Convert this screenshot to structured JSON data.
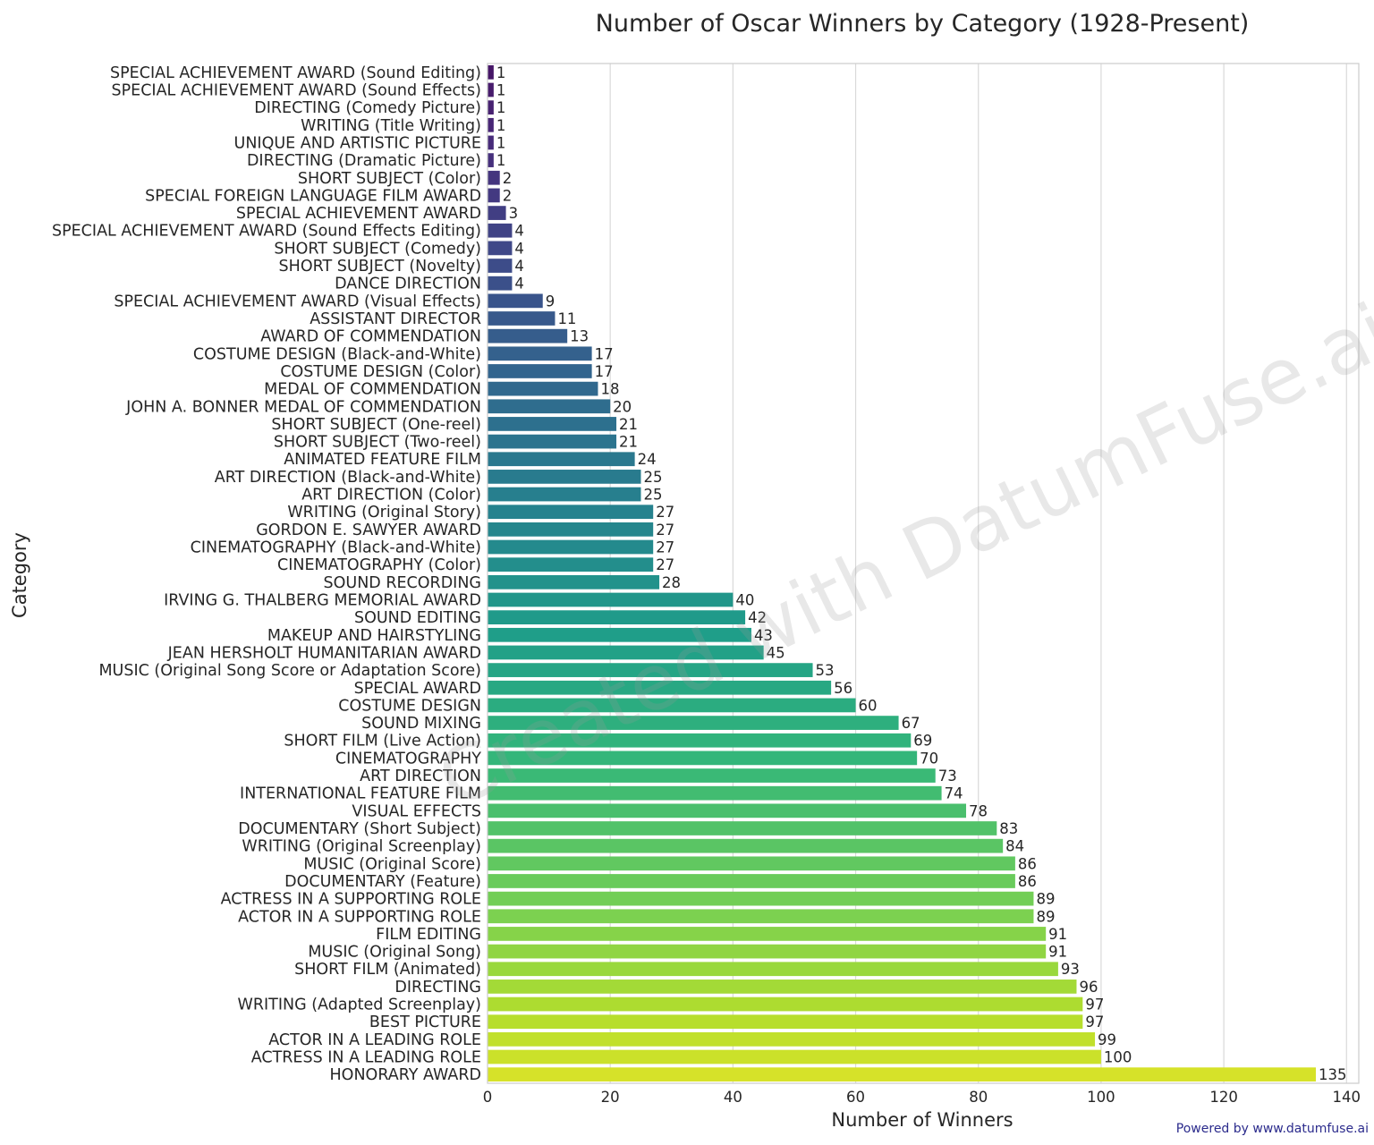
{
  "chart_data": {
    "type": "bar",
    "orientation": "horizontal",
    "title": "Number of Oscar Winners by Category (1928-Present)",
    "xlabel": "Number of Winners",
    "ylabel": "Category",
    "xlim": [
      0,
      142
    ],
    "xticks": [
      0,
      20,
      40,
      60,
      80,
      100,
      120,
      140
    ],
    "grid": true,
    "colormap": "viridis",
    "categories": [
      "SPECIAL ACHIEVEMENT AWARD (Sound Editing)",
      "SPECIAL ACHIEVEMENT AWARD (Sound Effects)",
      "DIRECTING (Comedy Picture)",
      "WRITING (Title Writing)",
      "UNIQUE AND ARTISTIC PICTURE",
      "DIRECTING (Dramatic Picture)",
      "SHORT SUBJECT (Color)",
      "SPECIAL FOREIGN LANGUAGE FILM AWARD",
      "SPECIAL ACHIEVEMENT AWARD",
      "SPECIAL ACHIEVEMENT AWARD (Sound Effects Editing)",
      "SHORT SUBJECT (Comedy)",
      "SHORT SUBJECT (Novelty)",
      "DANCE DIRECTION",
      "SPECIAL ACHIEVEMENT AWARD (Visual Effects)",
      "ASSISTANT DIRECTOR",
      "AWARD OF COMMENDATION",
      "COSTUME DESIGN (Black-and-White)",
      "COSTUME DESIGN (Color)",
      "MEDAL OF COMMENDATION",
      "JOHN A. BONNER MEDAL OF COMMENDATION",
      "SHORT SUBJECT (One-reel)",
      "SHORT SUBJECT (Two-reel)",
      "ANIMATED FEATURE FILM",
      "ART DIRECTION (Black-and-White)",
      "ART DIRECTION (Color)",
      "WRITING (Original Story)",
      "GORDON E. SAWYER AWARD",
      "CINEMATOGRAPHY (Black-and-White)",
      "CINEMATOGRAPHY (Color)",
      "SOUND RECORDING",
      "IRVING G. THALBERG MEMORIAL AWARD",
      "SOUND EDITING",
      "MAKEUP AND HAIRSTYLING",
      "JEAN HERSHOLT HUMANITARIAN AWARD",
      "MUSIC (Original Song Score or Adaptation Score)",
      "SPECIAL AWARD",
      "COSTUME DESIGN",
      "SOUND MIXING",
      "SHORT FILM (Live Action)",
      "CINEMATOGRAPHY",
      "ART DIRECTION",
      "INTERNATIONAL FEATURE FILM",
      "VISUAL EFFECTS",
      "DOCUMENTARY (Short Subject)",
      "WRITING (Original Screenplay)",
      "MUSIC (Original Score)",
      "DOCUMENTARY (Feature)",
      "ACTRESS IN A SUPPORTING ROLE",
      "ACTOR IN A SUPPORTING ROLE",
      "FILM EDITING",
      "MUSIC (Original Song)",
      "SHORT FILM (Animated)",
      "DIRECTING",
      "WRITING (Adapted Screenplay)",
      "BEST PICTURE",
      "ACTOR IN A LEADING ROLE",
      "ACTRESS IN A LEADING ROLE",
      "HONORARY AWARD"
    ],
    "values": [
      1,
      1,
      1,
      1,
      1,
      1,
      2,
      2,
      3,
      4,
      4,
      4,
      4,
      9,
      11,
      13,
      17,
      17,
      18,
      20,
      21,
      21,
      24,
      25,
      25,
      27,
      27,
      27,
      27,
      28,
      40,
      42,
      43,
      45,
      53,
      56,
      60,
      67,
      69,
      70,
      73,
      74,
      78,
      83,
      84,
      86,
      86,
      89,
      89,
      91,
      91,
      93,
      96,
      97,
      97,
      99,
      100,
      135
    ]
  },
  "watermark": "Created with DatumFuse.ai",
  "credit": "Powered by www.datumfuse.ai"
}
